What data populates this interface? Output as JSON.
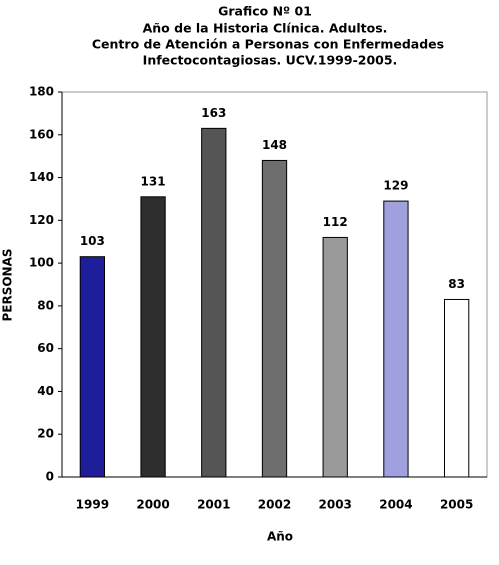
{
  "chart_data": {
    "type": "bar",
    "title": [
      "Grafico Nº 01",
      "Año de la Historia Clínica. Adultos.",
      "Centro de Atención a Personas con Enfermedades",
      "Infectocontagiosas. UCV.1999-2005."
    ],
    "x_label": "Año",
    "y_label": "PERSONAS",
    "categories": [
      "1999",
      "2000",
      "2001",
      "2002",
      "2003",
      "2004",
      "2005"
    ],
    "values": [
      103,
      131,
      163,
      148,
      112,
      129,
      83
    ],
    "colors": [
      "#1e1e9a",
      "#2e2e2e",
      "#555555",
      "#6e6e6e",
      "#9a9a9a",
      "#a0a0de",
      "#ffffff"
    ],
    "ylim": [
      0,
      180
    ],
    "yticks": [
      0,
      20,
      40,
      60,
      80,
      100,
      120,
      140,
      160,
      180
    ],
    "grid": false
  }
}
